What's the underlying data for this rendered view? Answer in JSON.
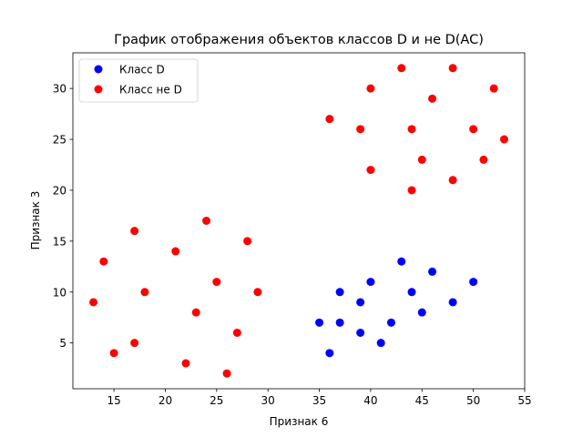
{
  "chart_data": {
    "type": "scatter",
    "title": "График отображения объектов классов D и не D(AC)",
    "xlabel": "Признак 6",
    "ylabel": "Признак 3",
    "xlim": [
      11.0,
      55.0
    ],
    "ylim": [
      0.5,
      33.5
    ],
    "xticks": [
      15,
      20,
      25,
      30,
      35,
      40,
      45,
      50,
      55
    ],
    "yticks": [
      5,
      10,
      15,
      20,
      25,
      30
    ],
    "grid": false,
    "legend_position": "top-left",
    "series": [
      {
        "name": "Класс D",
        "color": "#0000ff",
        "points": [
          [
            35,
            7
          ],
          [
            36,
            4
          ],
          [
            37,
            7
          ],
          [
            37,
            10
          ],
          [
            39,
            6
          ],
          [
            39,
            9
          ],
          [
            40,
            11
          ],
          [
            41,
            5
          ],
          [
            42,
            7
          ],
          [
            43,
            13
          ],
          [
            44,
            10
          ],
          [
            45,
            8
          ],
          [
            46,
            12
          ],
          [
            48,
            9
          ],
          [
            50,
            11
          ]
        ]
      },
      {
        "name": "Класс не D",
        "color": "#ff0000",
        "points": [
          [
            13,
            9
          ],
          [
            14,
            13
          ],
          [
            15,
            4
          ],
          [
            17,
            16
          ],
          [
            17,
            5
          ],
          [
            18,
            10
          ],
          [
            21,
            14
          ],
          [
            22,
            3
          ],
          [
            23,
            8
          ],
          [
            24,
            17
          ],
          [
            25,
            11
          ],
          [
            26,
            2
          ],
          [
            27,
            6
          ],
          [
            28,
            15
          ],
          [
            29,
            10
          ],
          [
            36,
            27
          ],
          [
            39,
            26
          ],
          [
            40,
            30
          ],
          [
            40,
            22
          ],
          [
            43,
            32
          ],
          [
            44,
            26
          ],
          [
            44,
            20
          ],
          [
            45,
            23
          ],
          [
            46,
            29
          ],
          [
            48,
            32
          ],
          [
            48,
            21
          ],
          [
            50,
            26
          ],
          [
            51,
            23
          ],
          [
            52,
            30
          ],
          [
            53,
            25
          ]
        ]
      }
    ]
  }
}
